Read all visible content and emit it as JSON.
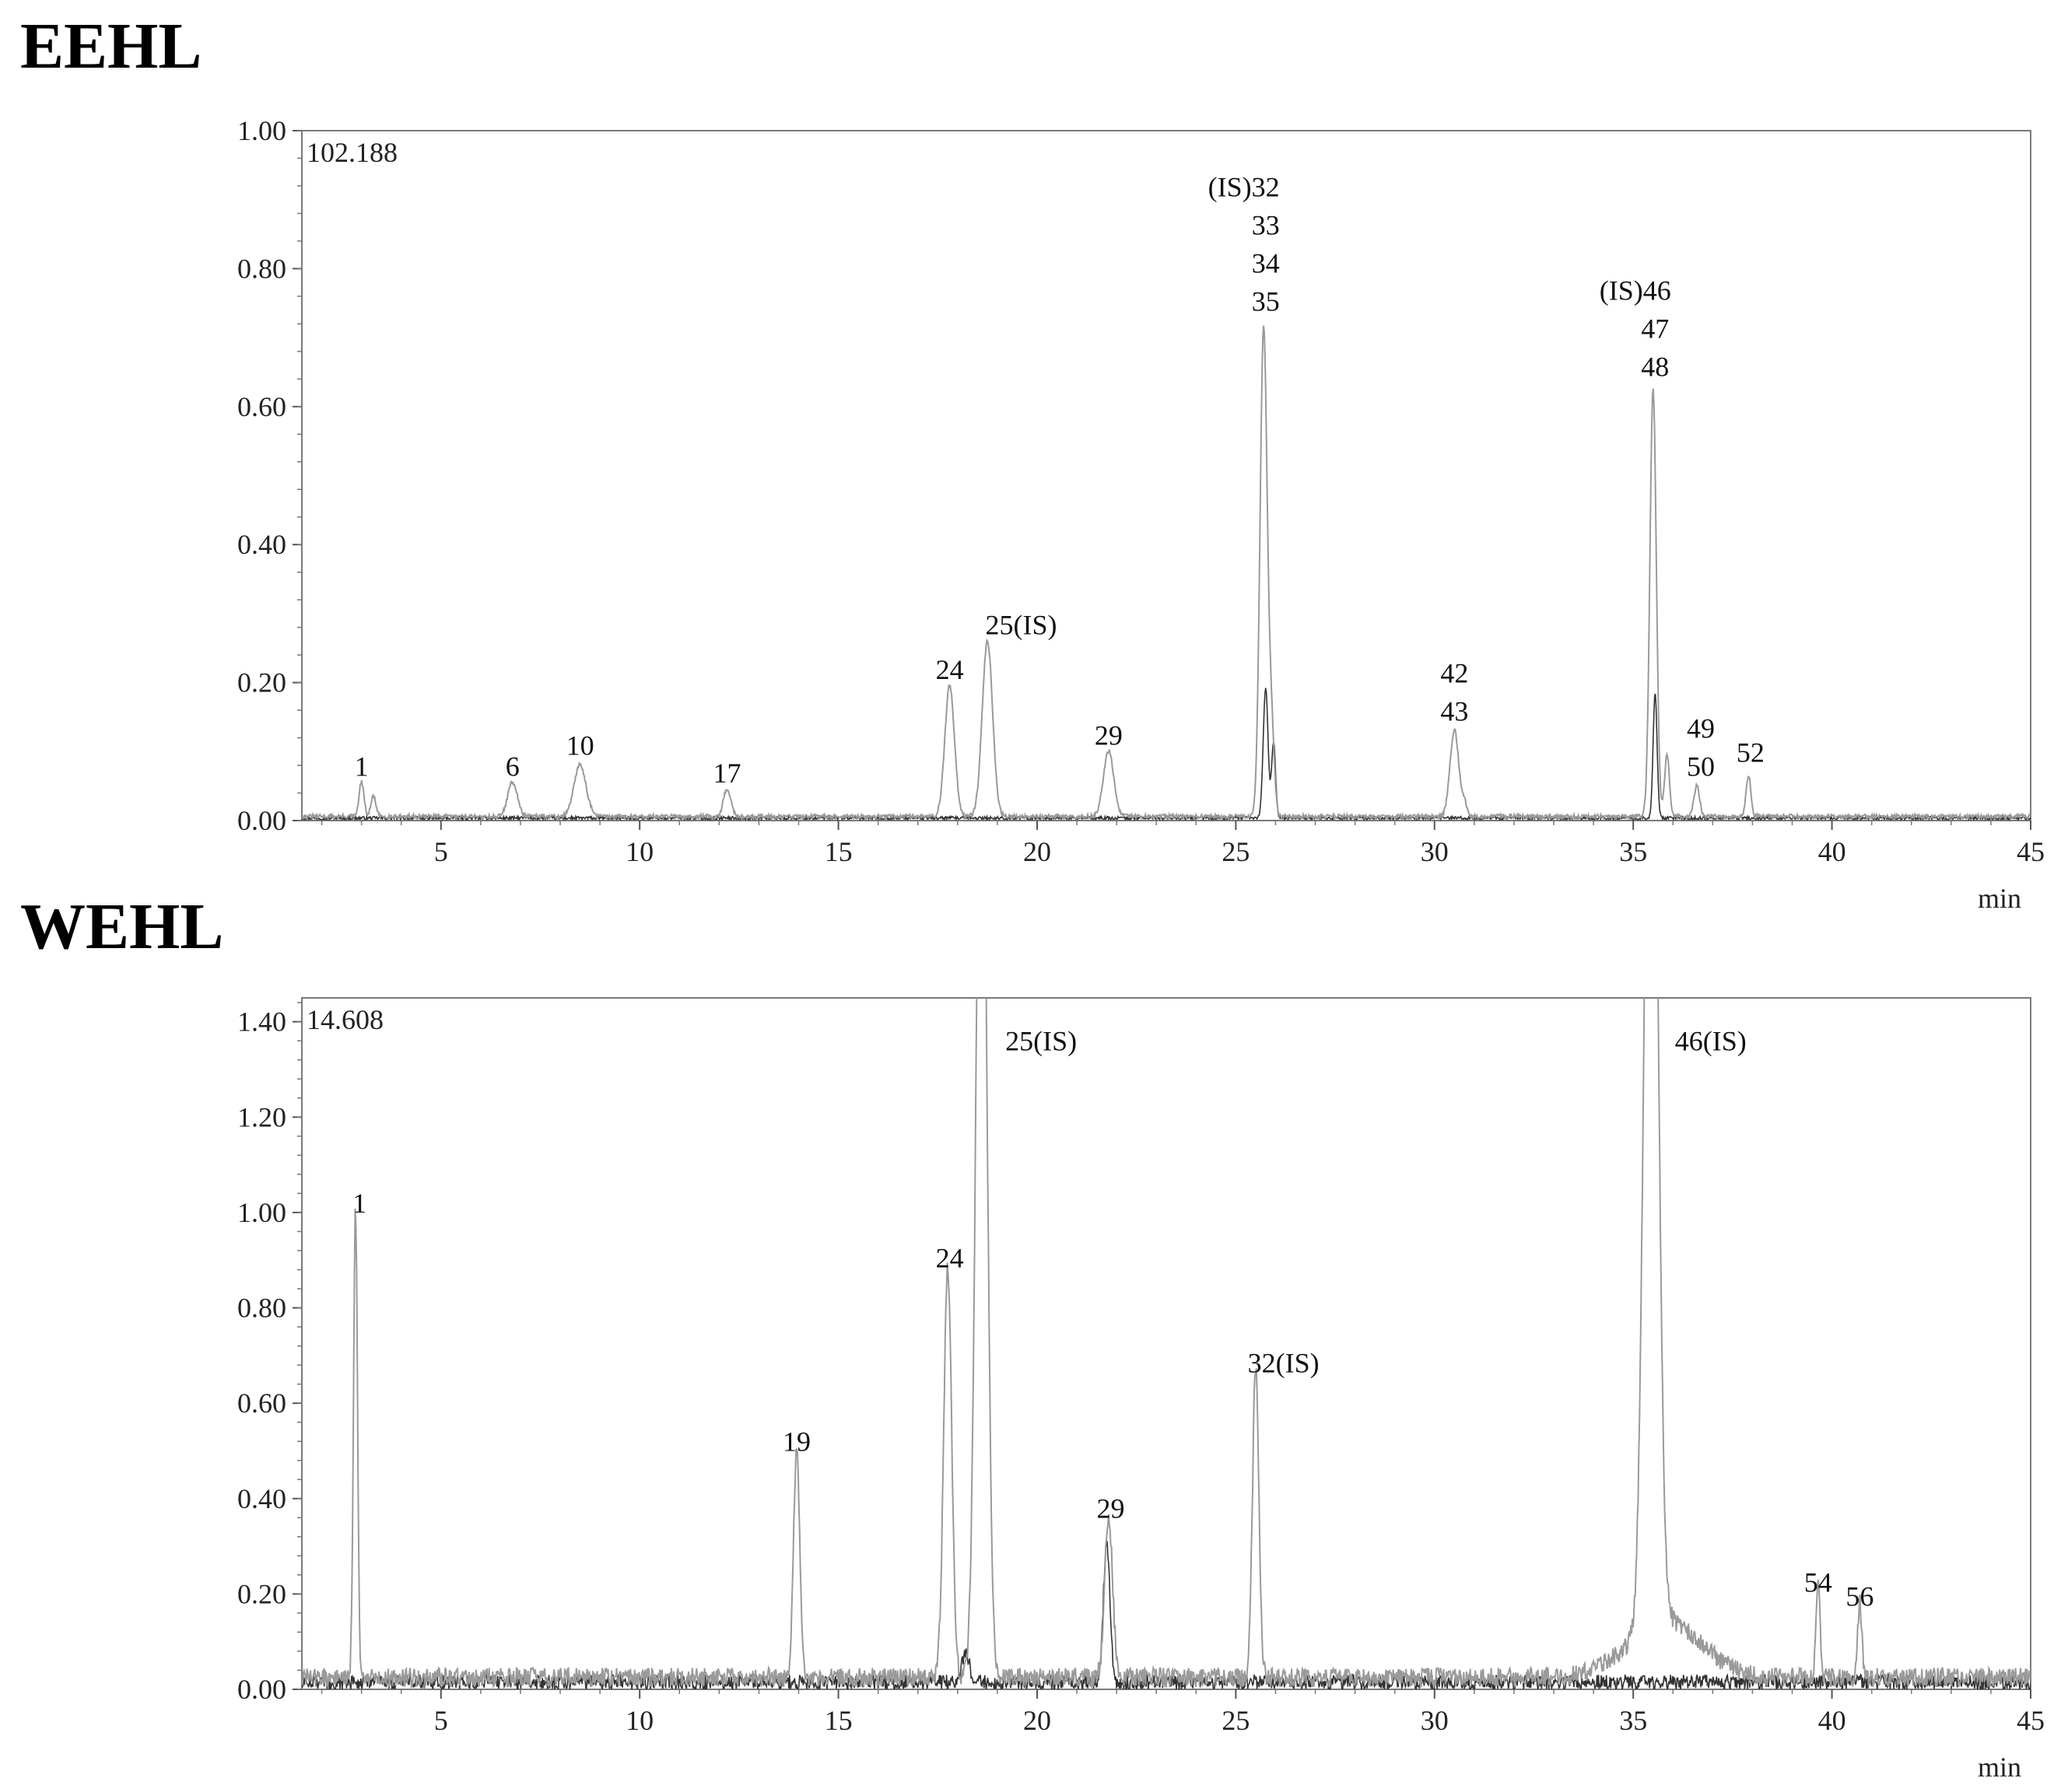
{
  "chart_data": [
    {
      "type": "line",
      "title": "EEHL",
      "scale_label": "102.188",
      "x_unit": "min",
      "xlim": [
        1.5,
        45
      ],
      "ylim": [
        0,
        1.0
      ],
      "x_ticks": [
        5,
        10,
        15,
        20,
        25,
        30,
        35,
        40,
        45
      ],
      "y_ticks": [
        "0.00",
        "0.20",
        "0.40",
        "0.60",
        "0.80",
        "1.00"
      ],
      "grid": false,
      "peaks": [
        {
          "x": 3.0,
          "y": 0.05,
          "w": 0.06
        },
        {
          "x": 3.3,
          "y": 0.03,
          "w": 0.06
        },
        {
          "x": 6.8,
          "y": 0.05,
          "w": 0.12
        },
        {
          "x": 8.5,
          "y": 0.075,
          "w": 0.15
        },
        {
          "x": 12.2,
          "y": 0.04,
          "w": 0.09
        },
        {
          "x": 17.8,
          "y": 0.19,
          "w": 0.12
        },
        {
          "x": 18.75,
          "y": 0.255,
          "w": 0.13
        },
        {
          "x": 21.8,
          "y": 0.095,
          "w": 0.13
        },
        {
          "x": 25.7,
          "y": 0.71,
          "w": 0.09
        },
        {
          "x": 25.9,
          "y": 0.12,
          "w": 0.07
        },
        {
          "x": 30.5,
          "y": 0.125,
          "w": 0.11
        },
        {
          "x": 30.75,
          "y": 0.02,
          "w": 0.06
        },
        {
          "x": 35.5,
          "y": 0.62,
          "w": 0.08
        },
        {
          "x": 35.85,
          "y": 0.09,
          "w": 0.06
        },
        {
          "x": 36.6,
          "y": 0.045,
          "w": 0.07
        },
        {
          "x": 37.9,
          "y": 0.06,
          "w": 0.06
        }
      ],
      "overlay_peaks": [
        {
          "x": 25.75,
          "y": 0.19,
          "w": 0.06
        },
        {
          "x": 25.95,
          "y": 0.11,
          "w": 0.05
        },
        {
          "x": 35.55,
          "y": 0.18,
          "w": 0.05
        }
      ],
      "annotations": [
        {
          "x": 3.0,
          "y": 0.065,
          "lines": [
            "1"
          ]
        },
        {
          "x": 6.8,
          "y": 0.065,
          "lines": [
            "6"
          ]
        },
        {
          "x": 8.5,
          "y": 0.095,
          "lines": [
            "10"
          ]
        },
        {
          "x": 12.2,
          "y": 0.055,
          "lines": [
            "17"
          ]
        },
        {
          "x": 17.8,
          "y": 0.205,
          "lines": [
            "24"
          ]
        },
        {
          "x": 19.6,
          "y": 0.27,
          "lines": [
            "25(IS)"
          ]
        },
        {
          "x": 21.8,
          "y": 0.11,
          "lines": [
            "29"
          ]
        },
        {
          "x": 25.2,
          "y": 0.905,
          "lines": [
            "(IS)32"
          ]
        },
        {
          "x": 25.75,
          "y": 0.905,
          "lines": [
            "33",
            "34",
            "35"
          ],
          "continuation": true
        },
        {
          "x": 30.5,
          "y": 0.2,
          "lines": [
            "42",
            "43"
          ]
        },
        {
          "x": 35.05,
          "y": 0.755,
          "lines": [
            "(IS)46"
          ]
        },
        {
          "x": 35.55,
          "y": 0.755,
          "lines": [
            "47",
            "48"
          ],
          "continuation": true
        },
        {
          "x": 36.7,
          "y": 0.12,
          "lines": [
            "49",
            "50"
          ]
        },
        {
          "x": 37.95,
          "y": 0.085,
          "lines": [
            "52"
          ]
        }
      ]
    },
    {
      "type": "line",
      "title": "WEHL",
      "scale_label": "14.608",
      "x_unit": "min",
      "xlim": [
        1.5,
        45
      ],
      "ylim": [
        0,
        1.45
      ],
      "x_ticks": [
        5,
        10,
        15,
        20,
        25,
        30,
        35,
        40,
        45
      ],
      "y_ticks": [
        "0.00",
        "0.20",
        "0.40",
        "0.60",
        "0.80",
        "1.00",
        "1.20",
        "1.40"
      ],
      "grid": false,
      "peaks": [
        {
          "x": 2.85,
          "y": 0.98,
          "w": 0.05
        },
        {
          "x": 13.95,
          "y": 0.48,
          "w": 0.08
        },
        {
          "x": 17.75,
          "y": 0.86,
          "w": 0.1
        },
        {
          "x": 18.6,
          "y": 2.2,
          "w": 0.13
        },
        {
          "x": 21.8,
          "y": 0.34,
          "w": 0.1
        },
        {
          "x": 25.5,
          "y": 0.65,
          "w": 0.08
        },
        {
          "x": 35.45,
          "y": 2.4,
          "w": 0.16
        },
        {
          "x": 35.8,
          "y": 0.12,
          "w": 0.9
        },
        {
          "x": 39.65,
          "y": 0.19,
          "w": 0.05
        },
        {
          "x": 40.7,
          "y": 0.16,
          "w": 0.05
        }
      ],
      "overlay_peaks": [
        {
          "x": 21.75,
          "y": 0.3,
          "w": 0.08
        },
        {
          "x": 18.2,
          "y": 0.06,
          "w": 0.1
        }
      ],
      "annotations": [
        {
          "x": 2.95,
          "y": 1.0,
          "lines": [
            "1"
          ]
        },
        {
          "x": 13.95,
          "y": 0.5,
          "lines": [
            "19"
          ]
        },
        {
          "x": 17.8,
          "y": 0.885,
          "lines": [
            "24"
          ]
        },
        {
          "x": 20.1,
          "y": 1.34,
          "lines": [
            "25(IS)"
          ]
        },
        {
          "x": 21.85,
          "y": 0.36,
          "lines": [
            "29"
          ]
        },
        {
          "x": 26.2,
          "y": 0.665,
          "lines": [
            "32(IS)"
          ]
        },
        {
          "x": 36.95,
          "y": 1.34,
          "lines": [
            "46(IS)"
          ]
        },
        {
          "x": 39.65,
          "y": 0.205,
          "lines": [
            "54"
          ]
        },
        {
          "x": 40.7,
          "y": 0.175,
          "lines": [
            "56"
          ]
        }
      ]
    }
  ]
}
